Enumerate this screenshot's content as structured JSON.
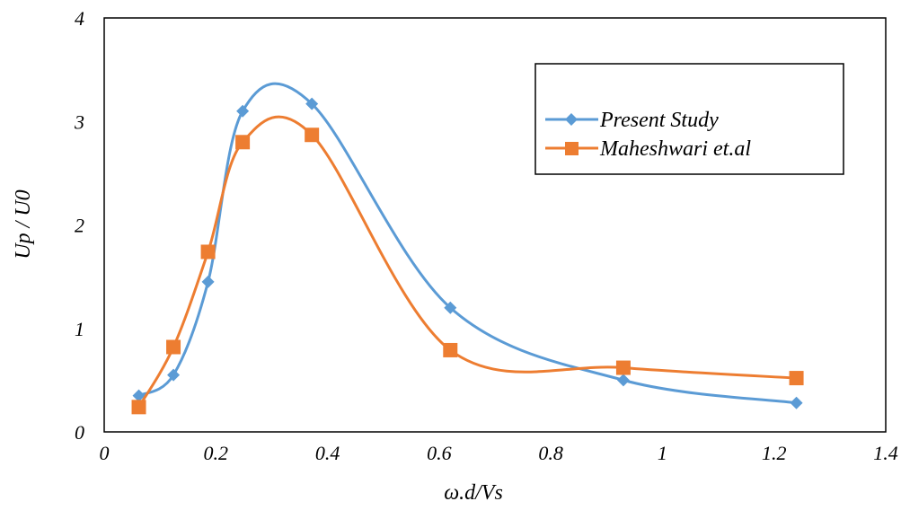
{
  "chart_data": {
    "type": "line",
    "title": "",
    "xlabel": "ω.d/Vs",
    "ylabel": "Up / U0",
    "xlim": [
      0,
      1.4
    ],
    "ylim": [
      0,
      4
    ],
    "xticks": [
      0,
      0.2,
      0.4,
      0.6,
      0.8,
      1,
      1.2,
      1.4
    ],
    "yticks": [
      0,
      1,
      2,
      3,
      4
    ],
    "xtick_labels": [
      "0",
      "0.2",
      "0.4",
      "0.6",
      "0.8",
      "1",
      "1.2",
      "1.4"
    ],
    "ytick_labels": [
      "0",
      "1",
      "2",
      "3",
      "4"
    ],
    "grid": false,
    "legend_position": "top-right",
    "series": [
      {
        "name": "Present Study",
        "color": "#5B9BD5",
        "marker": "diamond",
        "smooth": true,
        "x": [
          0.062,
          0.124,
          0.186,
          0.248,
          0.372,
          0.62,
          0.93,
          1.24
        ],
        "y": [
          0.35,
          0.55,
          1.45,
          3.1,
          3.17,
          1.2,
          0.5,
          0.28
        ]
      },
      {
        "name": "Maheshwari et.al",
        "color": "#ED7D31",
        "marker": "square",
        "smooth": true,
        "x": [
          0.062,
          0.124,
          0.186,
          0.248,
          0.372,
          0.62,
          0.93,
          1.24
        ],
        "y": [
          0.24,
          0.82,
          1.74,
          2.8,
          2.87,
          0.79,
          0.62,
          0.52
        ]
      }
    ]
  }
}
